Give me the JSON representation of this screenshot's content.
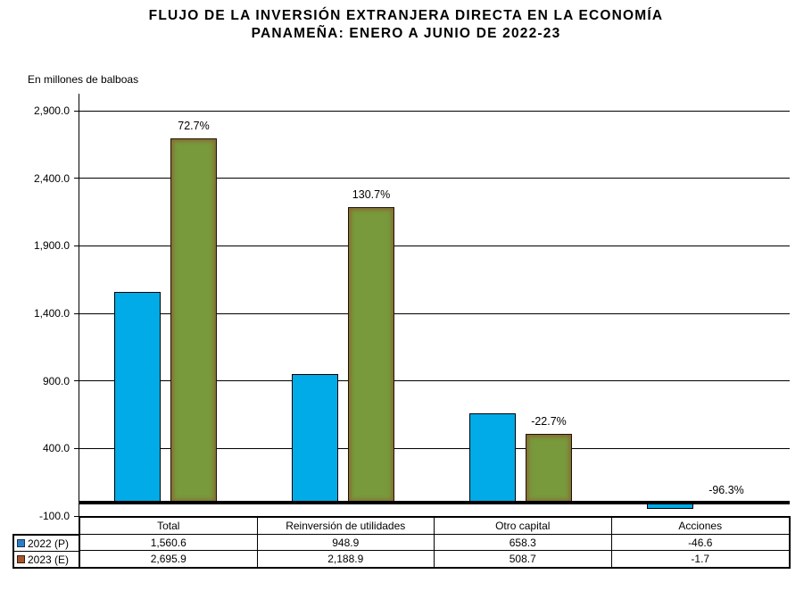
{
  "title": {
    "line1": "FLUJO DE LA INVERSIÓN EXTRANJERA DIRECTA EN LA ECONOMÍA",
    "line2": "PANAMEÑA: ENERO A JUNIO DE 2022-23"
  },
  "units_label": "En millones de balboas",
  "chart_data": {
    "type": "bar",
    "title": "FLUJO DE LA INVERSIÓN EXTRANJERA DIRECTA EN LA ECONOMÍA PANAMEÑA: ENERO A JUNIO DE 2022-23",
    "ylabel": "En millones de balboas",
    "categories": [
      "Total",
      "Reinversión de utilidades",
      "Otro capital",
      "Acciones"
    ],
    "series": [
      {
        "name": "2022 (P)",
        "values": [
          1560.6,
          948.9,
          658.3,
          -46.6
        ],
        "color": "#00ABE8",
        "border": "#000000",
        "swatch": "#2D7EC4",
        "swatch_border": "#17375E"
      },
      {
        "name": "2023 (E)",
        "values": [
          2695.9,
          2188.9,
          508.7,
          -1.7
        ],
        "color": "#78993C",
        "border": "#1E1406",
        "swatch": "#A5552F",
        "swatch_border": "#3A1F0E"
      }
    ],
    "pct_labels": [
      "72.7%",
      "130.7%",
      "-22.7%",
      "-96.3%"
    ],
    "ylim": [
      -100,
      2900
    ],
    "ytick_step": 500,
    "ytick_labels": [
      "2,900.0",
      "2,400.0",
      "1,900.0",
      "1,400.0",
      "900.0",
      "400.0",
      "-100.0"
    ],
    "grid": true,
    "legend_position": "table-left"
  },
  "table": {
    "columns": [
      "Total",
      "Reinversión de utilidades",
      "Otro capital",
      "Acciones"
    ],
    "rows": [
      {
        "label": "2022 (P)",
        "values": [
          "1,560.6",
          "948.9",
          "658.3",
          "-46.6"
        ]
      },
      {
        "label": "2023 (E)",
        "values": [
          "2,695.9",
          "2,188.9",
          "508.7",
          "-1.7"
        ]
      }
    ]
  }
}
